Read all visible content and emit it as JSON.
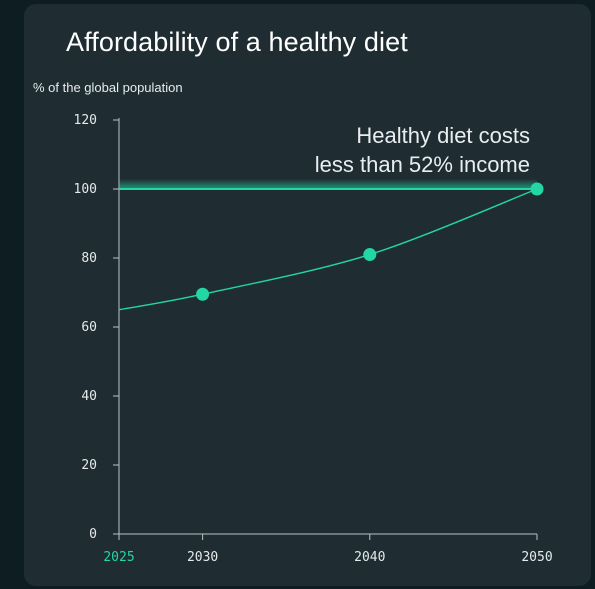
{
  "title": "Affordability of a healthy diet",
  "colors": {
    "background": "#0e1d22",
    "panel": "#1f2d33",
    "accent": "#22d6a6",
    "axis": "#b9c3c6",
    "text": "#e4e9eb"
  },
  "chart_data": {
    "type": "line",
    "title": "Affordability of a healthy diet",
    "ylabel": "% of the global population",
    "xlabel": "",
    "x_ticks": [
      2025,
      2030,
      2040,
      2050
    ],
    "x_tick_highlight": 2025,
    "xlim": [
      2025,
      2050
    ],
    "y_ticks": [
      0,
      20,
      40,
      60,
      80,
      100,
      120
    ],
    "ylim": [
      0,
      120
    ],
    "grid": false,
    "series": [
      {
        "x": [
          2025,
          2030,
          2040,
          2050
        ],
        "y": [
          65,
          69.5,
          81,
          100
        ],
        "markers": [
          false,
          true,
          true,
          true
        ]
      }
    ],
    "reference_line": {
      "y": 100,
      "label_lines": [
        "Healthy diet costs",
        "less than 52% income"
      ]
    }
  }
}
